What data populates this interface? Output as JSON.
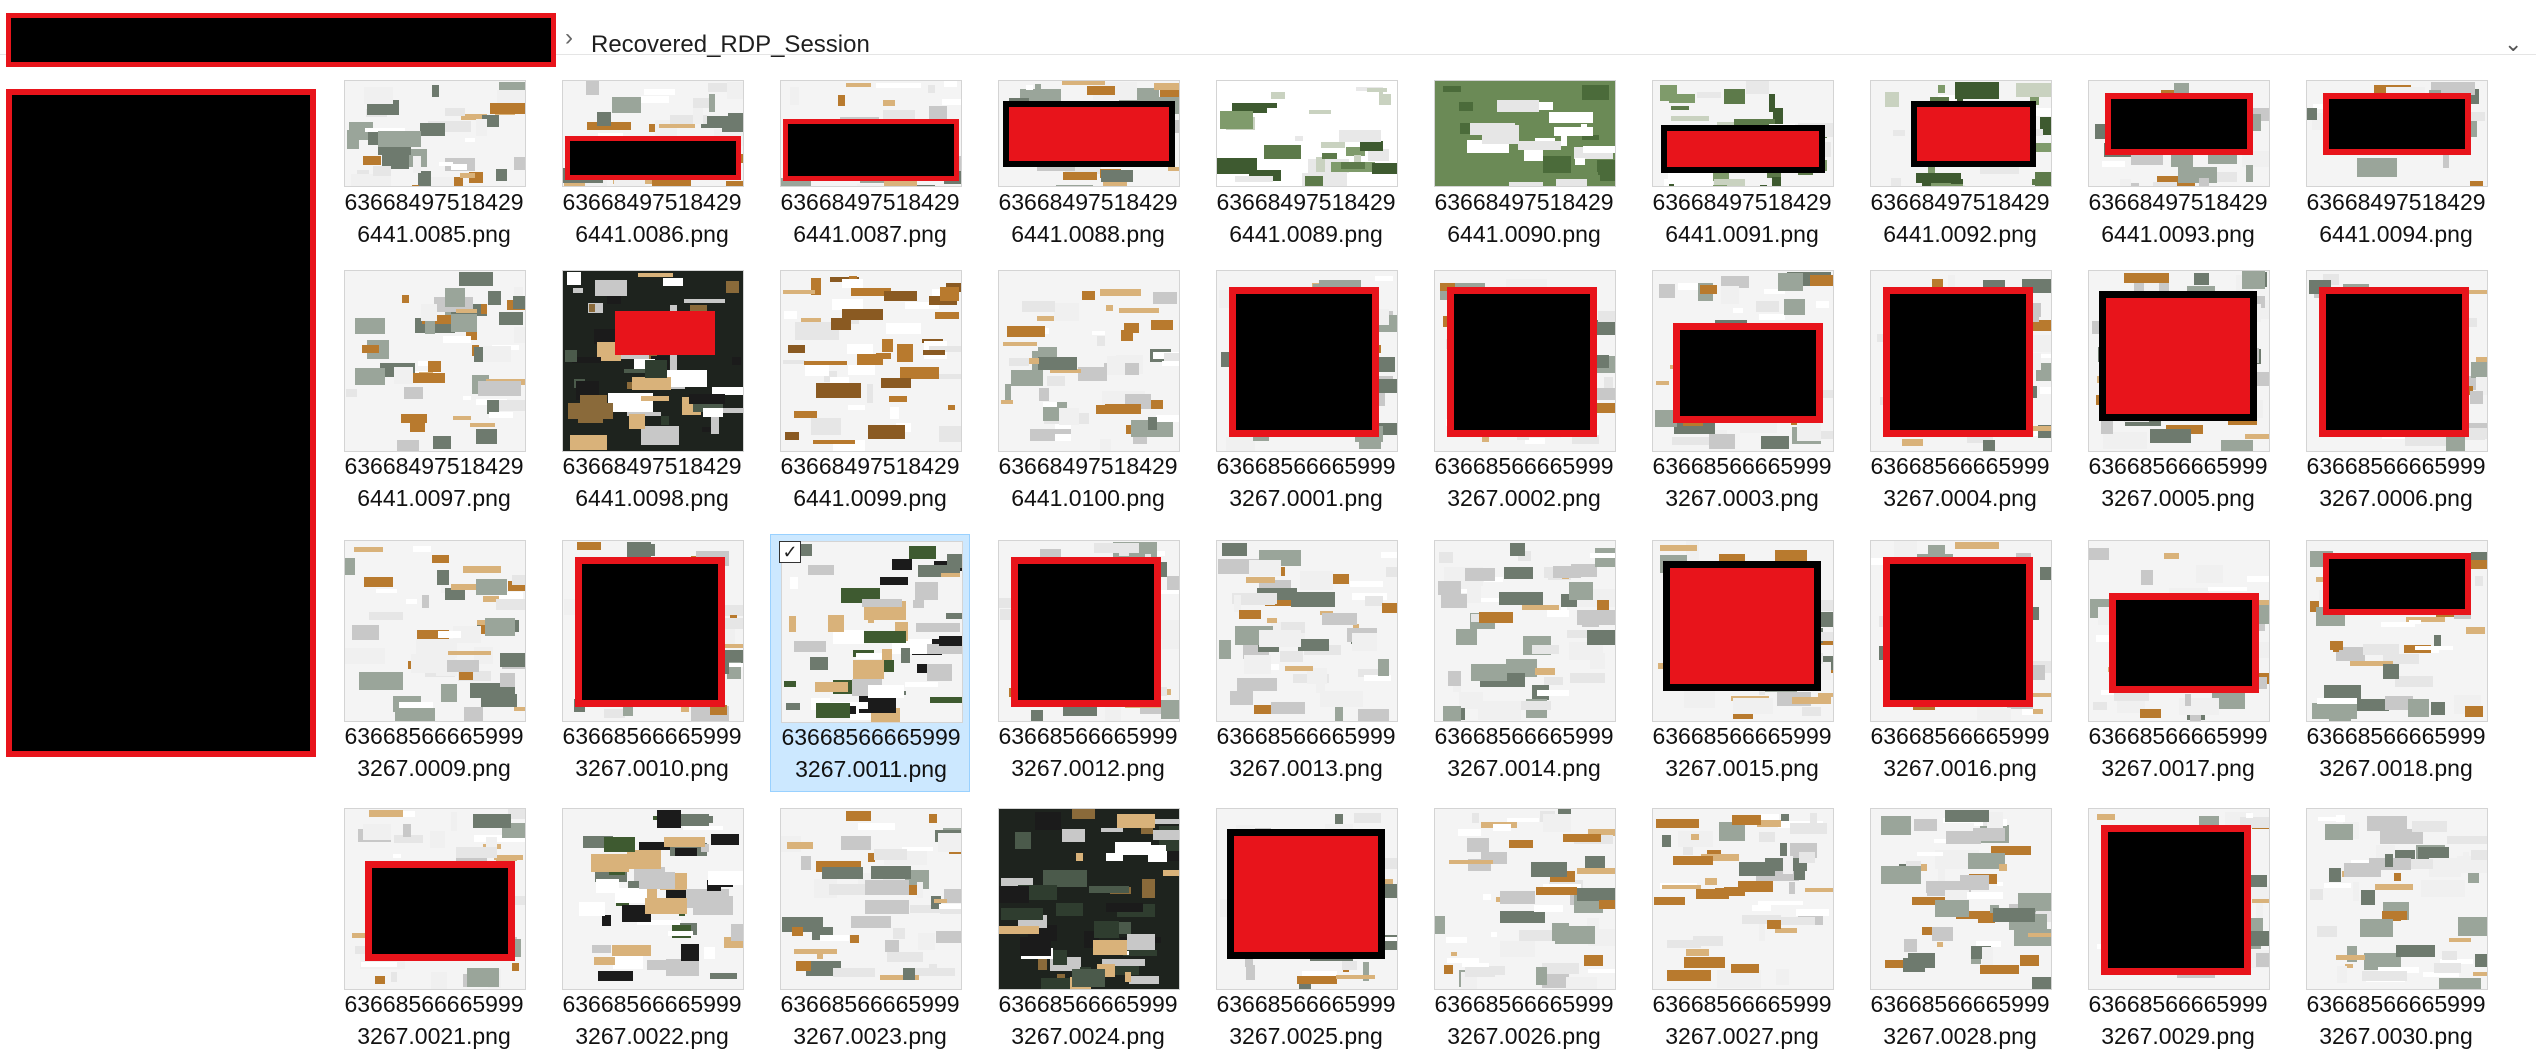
{
  "address_bar": {
    "redacted_prefix": true,
    "separator": "chevron-right-icon",
    "current_folder": "Recovered_RDP_Session",
    "dropdown": "chevron-down-icon"
  },
  "sidebar": {
    "redacted": true
  },
  "colors": {
    "redaction_border": "#e8141b",
    "redaction_fill": "#000000",
    "selection_bg": "#cce8ff"
  },
  "selected_file": "636685666659993267.0011.png",
  "files": [
    {
      "line1": "63668497518429",
      "line2": "6441.0085.png",
      "style": "text"
    },
    {
      "line1": "63668497518429",
      "line2": "6441.0086.png",
      "style": "redact-bottom"
    },
    {
      "line1": "63668497518429",
      "line2": "6441.0087.png",
      "style": "redact-bottom-wide"
    },
    {
      "line1": "63668497518429",
      "line2": "6441.0088.png",
      "style": "red-center"
    },
    {
      "line1": "63668497518429",
      "line2": "6441.0089.png",
      "style": "green"
    },
    {
      "line1": "63668497518429",
      "line2": "6441.0090.png",
      "style": "green-text"
    },
    {
      "line1": "63668497518429",
      "line2": "6441.0091.png",
      "style": "red-mid"
    },
    {
      "line1": "63668497518429",
      "line2": "6441.0092.png",
      "style": "green-red"
    },
    {
      "line1": "63668497518429",
      "line2": "6441.0093.png",
      "style": "redact-top"
    },
    {
      "line1": "63668497518429",
      "line2": "6441.0094.png",
      "style": "redact-top"
    },
    {
      "line1": "63668497518429",
      "line2": "6441.0097.png",
      "style": "text"
    },
    {
      "line1": "63668497518429",
      "line2": "6441.0098.png",
      "style": "dark-red"
    },
    {
      "line1": "63668497518429",
      "line2": "6441.0099.png",
      "style": "brown"
    },
    {
      "line1": "63668497518429",
      "line2": "6441.0100.png",
      "style": "text"
    },
    {
      "line1": "63668566665999",
      "line2": "3267.0001.png",
      "style": "redact-big"
    },
    {
      "line1": "63668566665999",
      "line2": "3267.0002.png",
      "style": "redact-big"
    },
    {
      "line1": "63668566665999",
      "line2": "3267.0003.png",
      "style": "redact-mid"
    },
    {
      "line1": "63668566665999",
      "line2": "3267.0004.png",
      "style": "redact-big"
    },
    {
      "line1": "63668566665999",
      "line2": "3267.0005.png",
      "style": "red-big"
    },
    {
      "line1": "63668566665999",
      "line2": "3267.0006.png",
      "style": "redact-big"
    },
    {
      "line1": "63668566665999",
      "line2": "3267.0009.png",
      "style": "mosaic"
    },
    {
      "line1": "63668566665999",
      "line2": "3267.0010.png",
      "style": "redact-big"
    },
    {
      "line1": "63668566665999",
      "line2": "3267.0011.png",
      "style": "mosaic-dark"
    },
    {
      "line1": "63668566665999",
      "line2": "3267.0012.png",
      "style": "redact-big"
    },
    {
      "line1": "63668566665999",
      "line2": "3267.0013.png",
      "style": "mosaic"
    },
    {
      "line1": "63668566665999",
      "line2": "3267.0014.png",
      "style": "mosaic"
    },
    {
      "line1": "63668566665999",
      "line2": "3267.0015.png",
      "style": "red-big"
    },
    {
      "line1": "63668566665999",
      "line2": "3267.0016.png",
      "style": "redact-big"
    },
    {
      "line1": "63668566665999",
      "line2": "3267.0017.png",
      "style": "redact-mid"
    },
    {
      "line1": "63668566665999",
      "line2": "3267.0018.png",
      "style": "redact-top"
    },
    {
      "line1": "63668566665999",
      "line2": "3267.0021.png",
      "style": "redact-mid"
    },
    {
      "line1": "63668566665999",
      "line2": "3267.0022.png",
      "style": "mosaic-dark"
    },
    {
      "line1": "63668566665999",
      "line2": "3267.0023.png",
      "style": "mosaic"
    },
    {
      "line1": "63668566665999",
      "line2": "3267.0024.png",
      "style": "dark"
    },
    {
      "line1": "63668566665999",
      "line2": "3267.0025.png",
      "style": "red-big"
    },
    {
      "line1": "63668566665999",
      "line2": "3267.0026.png",
      "style": "mosaic"
    },
    {
      "line1": "63668566665999",
      "line2": "3267.0027.png",
      "style": "mosaic"
    },
    {
      "line1": "63668566665999",
      "line2": "3267.0028.png",
      "style": "mosaic"
    },
    {
      "line1": "63668566665999",
      "line2": "3267.0029.png",
      "style": "redact-big"
    },
    {
      "line1": "63668566665999",
      "line2": "3267.0030.png",
      "style": "mosaic"
    }
  ]
}
